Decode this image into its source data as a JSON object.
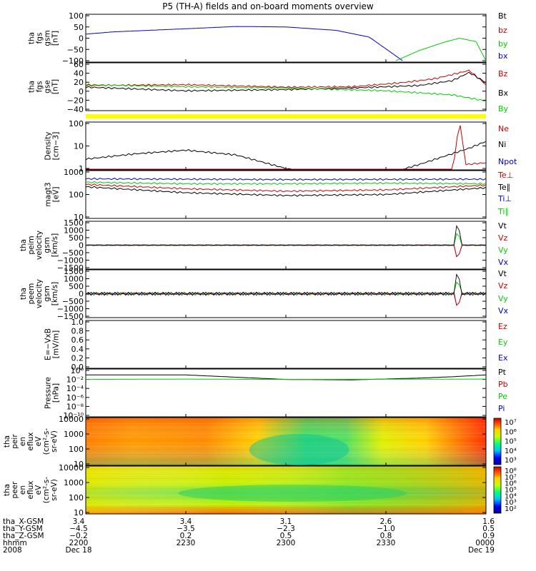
{
  "title": "P5 (TH-A) fields and on-board moments overview",
  "colors": {
    "black": "#000000",
    "red": "#cc0000",
    "green": "#00cc00",
    "blue": "#0000cc",
    "yellow": "#ffff00"
  },
  "panels": [
    {
      "id": "fgs-gsm",
      "ylabel": [
        "tha",
        "fgs",
        "gsm",
        "[nT]"
      ],
      "ticks": [
        "100",
        "50",
        "0",
        "−50",
        "−100"
      ],
      "legend": [
        {
          "label": "Bt",
          "color": "#000000"
        },
        {
          "label": "bz",
          "color": "#cc0000"
        },
        {
          "label": "by",
          "color": "#00cc00"
        },
        {
          "label": "bx",
          "color": "#0000cc"
        }
      ]
    },
    {
      "id": "fgs-gse",
      "ylabel": [
        "tha",
        "fgs",
        "gse",
        "[nT]"
      ],
      "ticks": [
        "60",
        "40",
        "20",
        "0",
        "−20",
        "−40"
      ],
      "legend": [
        {
          "label": "Bz",
          "color": "#cc0000"
        },
        {
          "label": "Bx",
          "color": "#000000"
        },
        {
          "label": "By",
          "color": "#00cc00"
        }
      ]
    },
    {
      "id": "density",
      "ylabel": [
        "Density",
        "[cm−3]"
      ],
      "ticks": [
        "100",
        "10",
        "1"
      ],
      "legend": [
        {
          "label": "Ne",
          "color": "#cc0000"
        },
        {
          "label": "Ni",
          "color": "#000000"
        },
        {
          "label": "Npot",
          "color": "#0000cc"
        }
      ]
    },
    {
      "id": "temperature",
      "ylabel": [
        "magt3",
        "[eV]"
      ],
      "ticks": [
        "1000",
        "100",
        "10"
      ],
      "legend": [
        {
          "label": "Te⊥",
          "color": "#cc0000"
        },
        {
          "label": "Te∥",
          "color": "#000000"
        },
        {
          "label": "Ti⊥",
          "color": "#0000cc"
        },
        {
          "label": "Ti∥",
          "color": "#00cc00"
        }
      ]
    },
    {
      "id": "peim-velocity",
      "ylabel": [
        "tha",
        "peim",
        "velocity",
        "gsm",
        "[km/s]"
      ],
      "ticks": [
        "1500",
        "1000",
        "500",
        "0",
        "−500",
        "−1000",
        "−1500"
      ],
      "legend": [
        {
          "label": "Vt",
          "color": "#000000"
        },
        {
          "label": "Vz",
          "color": "#cc0000"
        },
        {
          "label": "Vy",
          "color": "#00cc00"
        },
        {
          "label": "Vx",
          "color": "#0000cc"
        }
      ]
    },
    {
      "id": "peem-velocity",
      "ylabel": [
        "tha",
        "peem",
        "velocity",
        "gsm",
        "[km/s]"
      ],
      "ticks": [
        "1500",
        "1000",
        "500",
        "0",
        "−500",
        "−1000",
        "−1500"
      ],
      "legend": [
        {
          "label": "Vt",
          "color": "#000000"
        },
        {
          "label": "Vz",
          "color": "#cc0000"
        },
        {
          "label": "Vy",
          "color": "#00cc00"
        },
        {
          "label": "Vx",
          "color": "#0000cc"
        }
      ]
    },
    {
      "id": "efield",
      "ylabel": [
        "E=−VxB",
        "[mV/m]"
      ],
      "ticks": [
        "1.0",
        "0.8",
        "0.6",
        "0.4",
        "0.2",
        "0.0"
      ],
      "legend": [
        {
          "label": "Ez",
          "color": "#cc0000"
        },
        {
          "label": "Ey",
          "color": "#00cc00"
        },
        {
          "label": "Ex",
          "color": "#0000cc"
        }
      ]
    },
    {
      "id": "pressure",
      "ylabel": [
        "Pressure",
        "[nPa]"
      ],
      "ticks": [
        "10⁰",
        "10⁻²",
        "10⁻⁴",
        "10⁻⁶",
        "10⁻⁸",
        "10⁻¹⁰"
      ],
      "legend": [
        {
          "label": "Pt",
          "color": "#000000"
        },
        {
          "label": "Pb",
          "color": "#cc0000"
        },
        {
          "label": "Pe",
          "color": "#00cc00"
        },
        {
          "label": "Pi",
          "color": "#0000cc"
        }
      ]
    },
    {
      "id": "peir-spec",
      "ylabel": [
        "tha",
        "peir",
        "en",
        "eflux",
        "eV",
        "(cm²-s-",
        "sr-eV)"
      ],
      "ticks": [
        "10000",
        "1000",
        "100",
        "10"
      ],
      "cbar_ticks": [
        "10⁷",
        "10⁶",
        "10⁵",
        "10⁴",
        "10³"
      ]
    },
    {
      "id": "peer-spec",
      "ylabel": [
        "tha",
        "peer",
        "en",
        "eflux",
        "eV",
        "(cm²-s-",
        "sr-eV)"
      ],
      "ticks": [
        "10000",
        "1000",
        "100",
        "10"
      ],
      "cbar_ticks": [
        "10⁸",
        "10⁷",
        "10⁶",
        "10⁵",
        "10⁴",
        "10³",
        "10²"
      ]
    }
  ],
  "chart_data": {
    "type": "line",
    "title": "P5 (TH-A) fields and on-board moments overview",
    "x_unit": "UT hhmm",
    "x_ticks": [
      "2200",
      "2230",
      "2300",
      "2330",
      "0000"
    ],
    "x_range": [
      "2200",
      "0000"
    ],
    "ephemeris": {
      "labels": [
        "tha_X-GSM",
        "tha_Y-GSM",
        "tha_Z-GSM",
        "hhmm",
        "2008"
      ],
      "rows": [
        [
          "3.4",
          "3.4",
          "3.1",
          "2.6",
          "1.6"
        ],
        [
          "−4.5",
          "−3.5",
          "−2.3",
          "−1.0",
          "0.5"
        ],
        [
          "−0.2",
          "0.2",
          "0.5",
          "0.8",
          "0.9"
        ],
        [
          "2200",
          "2230",
          "2300",
          "2330",
          "0000"
        ],
        [
          "Dec 18",
          "",
          "",
          "",
          "Dec 19"
        ]
      ]
    },
    "series": [
      {
        "panel": "fgs-gsm",
        "name": "bx",
        "x_min": [
          0,
          8,
          30,
          45,
          60,
          75,
          85,
          95
        ],
        "y": [
          18,
          28,
          42,
          52,
          50,
          35,
          5,
          -100
        ]
      },
      {
        "panel": "fgs-gsm",
        "name": "by",
        "x_min": [
          93,
          100,
          107,
          112,
          117,
          120
        ],
        "y": [
          -100,
          -55,
          -20,
          0,
          -15,
          -100
        ]
      },
      {
        "panel": "fgs-gse",
        "name": "Bz",
        "x_min": [
          0,
          30,
          60,
          80,
          95,
          105,
          115,
          120
        ],
        "y": [
          8,
          10,
          4,
          5,
          15,
          25,
          45,
          10
        ]
      },
      {
        "panel": "fgs-gse",
        "name": "Bx",
        "x_min": [
          0,
          30,
          60,
          80,
          100,
          110,
          115,
          120
        ],
        "y": [
          4,
          -5,
          -2,
          2,
          8,
          20,
          40,
          15
        ]
      },
      {
        "panel": "fgs-gse",
        "name": "By",
        "x_min": [
          0,
          30,
          60,
          90,
          110,
          120
        ],
        "y": [
          10,
          5,
          2,
          -5,
          -15,
          -30
        ]
      },
      {
        "panel": "density",
        "name": "Ni",
        "x_min": [
          0,
          15,
          30,
          45,
          60,
          72,
          85,
          100,
          115,
          120
        ],
        "y": [
          2.6,
          4.5,
          6.5,
          4,
          1,
          0.3,
          0.35,
          1.5,
          8,
          16
        ]
      },
      {
        "panel": "density",
        "name": "Ne",
        "x_min": [
          0,
          40,
          70,
          100,
          110,
          112,
          114,
          120
        ],
        "y": [
          0.5,
          0.5,
          0.45,
          0.5,
          0.55,
          150,
          1.5,
          1.8
        ]
      },
      {
        "panel": "temperature",
        "name": "Ti⊥",
        "x_min": [
          0,
          30,
          60,
          90,
          120
        ],
        "y": [
          500,
          480,
          460,
          470,
          480
        ]
      },
      {
        "panel": "temperature",
        "name": "Ti∥",
        "x_min": [
          0,
          30,
          60,
          90,
          120
        ],
        "y": [
          350,
          300,
          300,
          320,
          300
        ]
      },
      {
        "panel": "temperature",
        "name": "Te⊥",
        "x_min": [
          0,
          30,
          60,
          90,
          120
        ],
        "y": [
          280,
          180,
          140,
          160,
          260
        ]
      },
      {
        "panel": "temperature",
        "name": "Te∥",
        "x_min": [
          0,
          30,
          60,
          90,
          120
        ],
        "y": [
          220,
          120,
          90,
          100,
          200
        ]
      },
      {
        "panel": "pressure",
        "name": "Pt",
        "x_min": [
          0,
          30,
          60,
          80,
          100,
          110,
          120
        ],
        "y": [
          0.1,
          0.1,
          0.01,
          0.008,
          0.02,
          0.04,
          0.1
        ]
      },
      {
        "panel": "pressure",
        "name": "Pe",
        "x_min": [
          0,
          30,
          60,
          90,
          120
        ],
        "y": [
          0.01,
          0.012,
          0.01,
          0.011,
          0.012
        ]
      }
    ]
  }
}
